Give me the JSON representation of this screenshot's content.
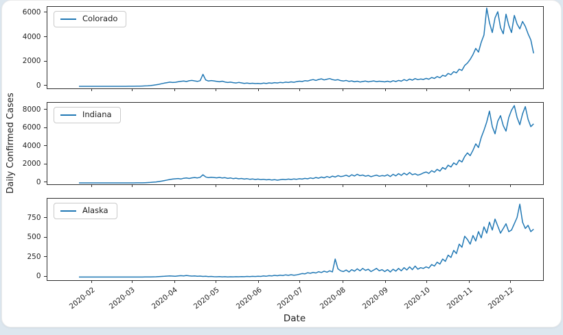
{
  "figure": {
    "ylabel": "Daily Confirmed Cases",
    "xlabel": "Date",
    "line_color": "#1f77b4",
    "page_background": "#dde7ef",
    "card_background": "#ffffff",
    "xlim_days": [
      -0.9,
      358.9
    ],
    "x_ticks": [
      {
        "day": 32,
        "label": "2020-02"
      },
      {
        "day": 61,
        "label": "2020-03"
      },
      {
        "day": 92,
        "label": "2020-04"
      },
      {
        "day": 122,
        "label": "2020-05"
      },
      {
        "day": 153,
        "label": "2020-06"
      },
      {
        "day": 183,
        "label": "2020-07"
      },
      {
        "day": 214,
        "label": "2020-08"
      },
      {
        "day": 245,
        "label": "2020-09"
      },
      {
        "day": 275,
        "label": "2020-10"
      },
      {
        "day": 306,
        "label": "2020-11"
      },
      {
        "day": 336,
        "label": "2020-12"
      }
    ]
  },
  "chart_data": [
    {
      "type": "line",
      "name": "colorado",
      "legend": "Colorado",
      "color": "#1f77b4",
      "start_day": 22,
      "step_days": 2,
      "ylim": [
        -170,
        6500
      ],
      "y_ticks": [
        0,
        2000,
        4000,
        6000
      ],
      "values": [
        0,
        0,
        0,
        0,
        0,
        0,
        0,
        0,
        0,
        0,
        0,
        0,
        0,
        0,
        0,
        0,
        0,
        0,
        2,
        3,
        5,
        8,
        12,
        18,
        30,
        45,
        60,
        90,
        120,
        160,
        210,
        260,
        300,
        340,
        310,
        330,
        370,
        400,
        430,
        390,
        450,
        480,
        440,
        400,
        460,
        980,
        520,
        430,
        470,
        440,
        400,
        370,
        420,
        350,
        310,
        340,
        300,
        270,
        320,
        280,
        240,
        260,
        230,
        250,
        220,
        240,
        210,
        260,
        230,
        280,
        250,
        300,
        270,
        320,
        290,
        340,
        310,
        360,
        330,
        380,
        420,
        390,
        460,
        430,
        500,
        550,
        480,
        560,
        610,
        520,
        580,
        630,
        550,
        500,
        540,
        470,
        430,
        480,
        400,
        440,
        370,
        420,
        350,
        390,
        430,
        360,
        410,
        440,
        380,
        420,
        390,
        360,
        420,
        350,
        460,
        390,
        480,
        420,
        550,
        460,
        590,
        500,
        630,
        540,
        600,
        560,
        650,
        580,
        720,
        640,
        800,
        700,
        900,
        820,
        1050,
        950,
        1200,
        1100,
        1400,
        1300,
        1700,
        1900,
        2200,
        2600,
        3100,
        2800,
        3600,
        4200,
        6400,
        5200,
        4400,
        5600,
        6100,
        4800,
        4300,
        5900,
        5000,
        4400,
        5800,
        5100,
        4700,
        5300,
        4900,
        4300,
        3800,
        2700
      ]
    },
    {
      "type": "line",
      "name": "indiana",
      "legend": "Indiana",
      "color": "#1f77b4",
      "start_day": 22,
      "step_days": 2,
      "ylim": [
        -150,
        8820
      ],
      "y_ticks": [
        0,
        2000,
        4000,
        6000,
        8000
      ],
      "values": [
        0,
        0,
        0,
        0,
        0,
        0,
        0,
        0,
        0,
        0,
        0,
        0,
        0,
        0,
        0,
        0,
        0,
        0,
        1,
        2,
        3,
        5,
        8,
        12,
        20,
        35,
        55,
        80,
        110,
        150,
        200,
        260,
        320,
        380,
        420,
        450,
        480,
        430,
        510,
        540,
        490,
        560,
        600,
        550,
        620,
        900,
        660,
        580,
        630,
        600,
        560,
        610,
        540,
        580,
        500,
        550,
        470,
        520,
        450,
        490,
        420,
        470,
        400,
        440,
        380,
        420,
        360,
        400,
        340,
        380,
        320,
        360,
        300,
        350,
        400,
        360,
        420,
        380,
        440,
        400,
        460,
        420,
        500,
        450,
        550,
        480,
        600,
        520,
        650,
        560,
        700,
        600,
        750,
        650,
        800,
        700,
        750,
        850,
        700,
        900,
        760,
        950,
        800,
        870,
        740,
        820,
        690,
        780,
        860,
        730,
        810,
        760,
        900,
        700,
        950,
        780,
        1020,
        830,
        1080,
        880,
        1150,
        900,
        1000,
        850,
        950,
        1100,
        1200,
        1050,
        1350,
        1180,
        1500,
        1300,
        1700,
        1500,
        1950,
        1750,
        2200,
        2000,
        2500,
        2300,
        2900,
        3300,
        3000,
        3600,
        4300,
        3900,
        5000,
        5800,
        6700,
        7900,
        6200,
        5400,
        6800,
        7400,
        6300,
        5700,
        7200,
        8000,
        8500,
        7200,
        6400,
        7600,
        8400,
        7000,
        6200,
        6500
      ]
    },
    {
      "type": "line",
      "name": "alaska",
      "legend": "Alaska",
      "color": "#1f77b4",
      "start_day": 22,
      "step_days": 2,
      "ylim": [
        -40,
        1000
      ],
      "y_ticks": [
        0,
        250,
        500,
        750
      ],
      "values": [
        0,
        0,
        0,
        0,
        0,
        0,
        0,
        0,
        0,
        0,
        0,
        0,
        0,
        0,
        0,
        0,
        0,
        0,
        0,
        0,
        0,
        0,
        0,
        0,
        1,
        1,
        2,
        3,
        4,
        6,
        8,
        10,
        12,
        14,
        12,
        10,
        14,
        18,
        15,
        20,
        16,
        12,
        15,
        10,
        12,
        8,
        10,
        6,
        8,
        5,
        4,
        6,
        3,
        5,
        2,
        4,
        3,
        5,
        4,
        6,
        5,
        8,
        6,
        9,
        7,
        10,
        8,
        14,
        11,
        18,
        14,
        22,
        17,
        25,
        20,
        28,
        22,
        30,
        24,
        28,
        35,
        45,
        40,
        55,
        48,
        60,
        52,
        68,
        58,
        75,
        62,
        80,
        66,
        230,
        105,
        80,
        70,
        90,
        65,
        95,
        75,
        105,
        80,
        110,
        85,
        100,
        70,
        90,
        110,
        80,
        95,
        70,
        95,
        65,
        100,
        75,
        110,
        80,
        120,
        90,
        130,
        95,
        140,
        100,
        120,
        110,
        130,
        115,
        160,
        140,
        190,
        165,
        230,
        200,
        280,
        250,
        340,
        300,
        420,
        380,
        520,
        480,
        420,
        530,
        460,
        580,
        500,
        640,
        560,
        700,
        600,
        740,
        650,
        560,
        620,
        680,
        580,
        600,
        680,
        760,
        930,
        700,
        620,
        660,
        580,
        610
      ]
    }
  ]
}
